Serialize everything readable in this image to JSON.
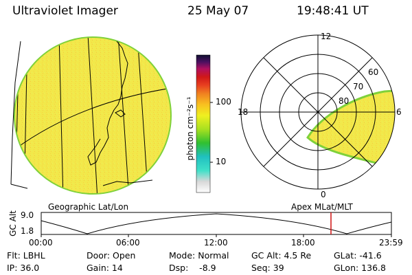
{
  "header": {
    "title": "Ultraviolet Imager",
    "date": "25 May 07",
    "time": "19:48:41 UT"
  },
  "colorbar": {
    "unit_label": "photon cm⁻²s⁻¹",
    "ticks": [
      "100",
      "10"
    ]
  },
  "polar": {
    "mlt_labels": [
      "12",
      "18",
      "6",
      "0"
    ],
    "mlat_labels": [
      "60",
      "70",
      "80"
    ]
  },
  "panels": {
    "left_label": "Geographic Lat/Lon",
    "right_label": "Apex  MLat/MLT"
  },
  "altitude_plot": {
    "axis_title": "GC Alt",
    "y_ticks": [
      "9.0",
      "1.8"
    ],
    "x_ticks": [
      "00:00",
      "06:00",
      "12:00",
      "18:00",
      "23:59"
    ],
    "marker_color": "#d01010"
  },
  "status": {
    "flt": "Flt: LBHL",
    "ip": "IP: 36.0",
    "door": "Door: Open",
    "gain": "Gain: 14",
    "mode": "Mode: Normal",
    "dsp": "Dsp:    -8.9",
    "gc_alt": "GC Alt: 4.5 Re",
    "seq": "Seq: 39",
    "glat": "GLat: -41.6",
    "glon": "GLon: 136.8"
  },
  "colors": {
    "image_fill": "#f2e84a",
    "image_edge": "#7fd13a",
    "marker": "#d01010"
  }
}
